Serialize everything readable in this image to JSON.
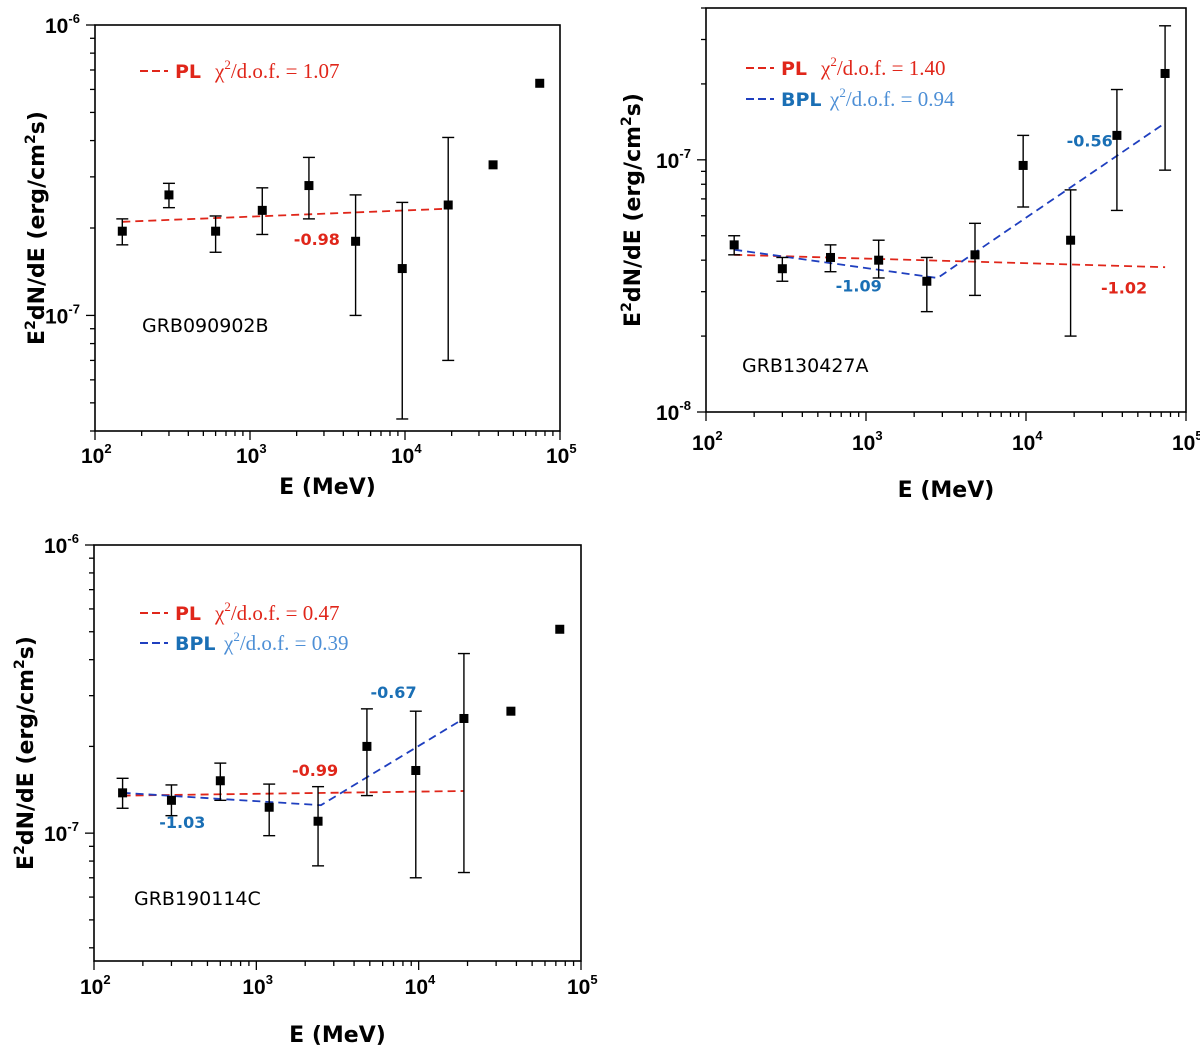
{
  "x_axis_label": "E (MeV)",
  "y_axis_label_parts": {
    "base": "E",
    "sup": "2",
    "rest": "dN/dE (erg/cm",
    "sup2": "2",
    "end": "s)"
  },
  "tick_base": "10",
  "colors": {
    "pl": "#e0261a",
    "bpl": "#1f3fbf",
    "bpl_chi": "#4d8fd6",
    "bpl_slope": "#1a6fb5",
    "marker": "#000000"
  },
  "legend_chi_text": {
    "chi": "χ",
    "sup": "2",
    "rest": "/d.o.f. = "
  },
  "chart_data": [
    {
      "type": "scatter",
      "title": "GRB090902B",
      "xlabel": "E (MeV)",
      "ylabel": "E2dN/dE (erg/cm2s)",
      "xscale": "log",
      "yscale": "log",
      "xlim": [
        100,
        100000
      ],
      "ylim": [
        4e-08,
        1e-06
      ],
      "x_ticks": [
        {
          "exp": "2",
          "v": 100
        },
        {
          "exp": "3",
          "v": 1000
        },
        {
          "exp": "4",
          "v": 10000
        },
        {
          "exp": "5",
          "v": 100000
        }
      ],
      "y_ticks": [
        {
          "exp": "-7",
          "v": 1e-07
        },
        {
          "exp": "-6",
          "v": 1e-06
        }
      ],
      "points": [
        {
          "x": 150,
          "y": 1.95e-07,
          "lo": 1.75e-07,
          "hi": 2.15e-07
        },
        {
          "x": 300,
          "y": 2.6e-07,
          "lo": 2.35e-07,
          "hi": 2.85e-07
        },
        {
          "x": 600,
          "y": 1.95e-07,
          "lo": 1.65e-07,
          "hi": 2.2e-07
        },
        {
          "x": 1200,
          "y": 2.3e-07,
          "lo": 1.9e-07,
          "hi": 2.75e-07
        },
        {
          "x": 2400,
          "y": 2.8e-07,
          "lo": 2.15e-07,
          "hi": 3.5e-07
        },
        {
          "x": 4800,
          "y": 1.8e-07,
          "lo": 1e-07,
          "hi": 2.6e-07
        },
        {
          "x": 9600,
          "y": 1.45e-07,
          "lo": 4.4e-08,
          "hi": 2.45e-07
        },
        {
          "x": 19000,
          "y": 2.4e-07,
          "lo": 7e-08,
          "hi": 4.1e-07
        },
        {
          "x": 37000,
          "y": 3.3e-07
        },
        {
          "x": 74000,
          "y": 6.3e-07
        }
      ],
      "series": [
        {
          "name": "PL",
          "chi2_dof": "1.07",
          "style": "pl",
          "x": [
            150,
            19000
          ],
          "y": [
            2.1e-07,
            2.33e-07
          ]
        }
      ],
      "annotations": [
        {
          "text": "-0.98",
          "x": 2700,
          "y": 1.75e-07,
          "style": "pl"
        }
      ],
      "legend_pos": "top-left"
    },
    {
      "type": "scatter",
      "title": "GRB130427A",
      "xlabel": "E (MeV)",
      "ylabel": "E2dN/dE (erg/cm2s)",
      "xscale": "log",
      "yscale": "log",
      "xlim": [
        100,
        100000
      ],
      "ylim": [
        1e-08,
        4e-07
      ],
      "x_ticks": [
        {
          "exp": "2",
          "v": 100
        },
        {
          "exp": "3",
          "v": 1000
        },
        {
          "exp": "4",
          "v": 10000
        },
        {
          "exp": "5",
          "v": 100000
        }
      ],
      "y_ticks": [
        {
          "exp": "-8",
          "v": 1e-08
        },
        {
          "exp": "-7",
          "v": 1e-07
        }
      ],
      "points": [
        {
          "x": 150,
          "y": 4.6e-08,
          "lo": 4.2e-08,
          "hi": 5e-08
        },
        {
          "x": 300,
          "y": 3.7e-08,
          "lo": 3.3e-08,
          "hi": 4.1e-08
        },
        {
          "x": 600,
          "y": 4.1e-08,
          "lo": 3.6e-08,
          "hi": 4.6e-08
        },
        {
          "x": 1200,
          "y": 4e-08,
          "lo": 3.4e-08,
          "hi": 4.8e-08
        },
        {
          "x": 2400,
          "y": 3.3e-08,
          "lo": 2.5e-08,
          "hi": 4.1e-08
        },
        {
          "x": 4800,
          "y": 4.2e-08,
          "lo": 2.9e-08,
          "hi": 5.6e-08
        },
        {
          "x": 9600,
          "y": 9.5e-08,
          "lo": 6.5e-08,
          "hi": 1.25e-07
        },
        {
          "x": 19000,
          "y": 4.8e-08,
          "lo": 2e-08,
          "hi": 7.6e-08
        },
        {
          "x": 37000,
          "y": 1.25e-07,
          "lo": 6.3e-08,
          "hi": 1.9e-07
        },
        {
          "x": 74000,
          "y": 2.2e-07,
          "lo": 9.1e-08,
          "hi": 3.4e-07
        }
      ],
      "series": [
        {
          "name": "PL",
          "chi2_dof": "1.40",
          "style": "pl",
          "x": [
            150,
            74000
          ],
          "y": [
            4.2e-08,
            3.75e-08
          ]
        },
        {
          "name": "BPL",
          "chi2_dof": "0.94",
          "style": "bpl",
          "x": [
            150,
            2800,
            74000
          ],
          "y": [
            4.4e-08,
            3.4e-08,
            1.4e-07
          ]
        }
      ],
      "annotations": [
        {
          "text": "-1.09",
          "x": 900,
          "y": 3e-08,
          "style": "bpl_slope"
        },
        {
          "text": "-0.56",
          "x": 25000,
          "y": 1.13e-07,
          "style": "bpl_slope"
        },
        {
          "text": "-1.02",
          "x": 41000,
          "y": 2.95e-08,
          "style": "pl"
        }
      ],
      "legend_pos": "top-left"
    },
    {
      "type": "scatter",
      "title": "GRB190114C",
      "xlabel": "E (MeV)",
      "ylabel": "E2dN/dE (erg/cm2s)",
      "xscale": "log",
      "yscale": "log",
      "xlim": [
        100,
        100000
      ],
      "ylim": [
        3.6e-08,
        1e-06
      ],
      "x_ticks": [
        {
          "exp": "2",
          "v": 100
        },
        {
          "exp": "3",
          "v": 1000
        },
        {
          "exp": "4",
          "v": 10000
        },
        {
          "exp": "5",
          "v": 100000
        }
      ],
      "y_ticks": [
        {
          "exp": "-7",
          "v": 1e-07
        },
        {
          "exp": "-6",
          "v": 1e-06
        }
      ],
      "points": [
        {
          "x": 150,
          "y": 1.38e-07,
          "lo": 1.22e-07,
          "hi": 1.55e-07
        },
        {
          "x": 300,
          "y": 1.3e-07,
          "lo": 1.15e-07,
          "hi": 1.47e-07
        },
        {
          "x": 600,
          "y": 1.52e-07,
          "lo": 1.3e-07,
          "hi": 1.75e-07
        },
        {
          "x": 1200,
          "y": 1.23e-07,
          "lo": 9.8e-08,
          "hi": 1.48e-07
        },
        {
          "x": 2400,
          "y": 1.1e-07,
          "lo": 7.7e-08,
          "hi": 1.45e-07
        },
        {
          "x": 4800,
          "y": 2e-07,
          "lo": 1.35e-07,
          "hi": 2.7e-07
        },
        {
          "x": 9600,
          "y": 1.65e-07,
          "lo": 7e-08,
          "hi": 2.65e-07
        },
        {
          "x": 19000,
          "y": 2.5e-07,
          "lo": 7.3e-08,
          "hi": 4.2e-07
        },
        {
          "x": 37000,
          "y": 2.65e-07
        },
        {
          "x": 74000,
          "y": 5.1e-07
        }
      ],
      "series": [
        {
          "name": "PL",
          "chi2_dof": "0.47",
          "style": "pl",
          "x": [
            150,
            19000
          ],
          "y": [
            1.35e-07,
            1.4e-07
          ]
        },
        {
          "name": "BPL",
          "chi2_dof": "0.39",
          "style": "bpl",
          "x": [
            150,
            2500,
            19000
          ],
          "y": [
            1.38e-07,
            1.25e-07,
            2.5e-07
          ]
        }
      ],
      "annotations": [
        {
          "text": "-0.99",
          "x": 2300,
          "y": 1.58e-07,
          "style": "pl"
        },
        {
          "text": "-1.03",
          "x": 350,
          "y": 1.04e-07,
          "style": "bpl_slope"
        },
        {
          "text": "-0.67",
          "x": 7000,
          "y": 2.95e-07,
          "style": "bpl_slope"
        }
      ],
      "legend_pos": "top-left"
    }
  ]
}
